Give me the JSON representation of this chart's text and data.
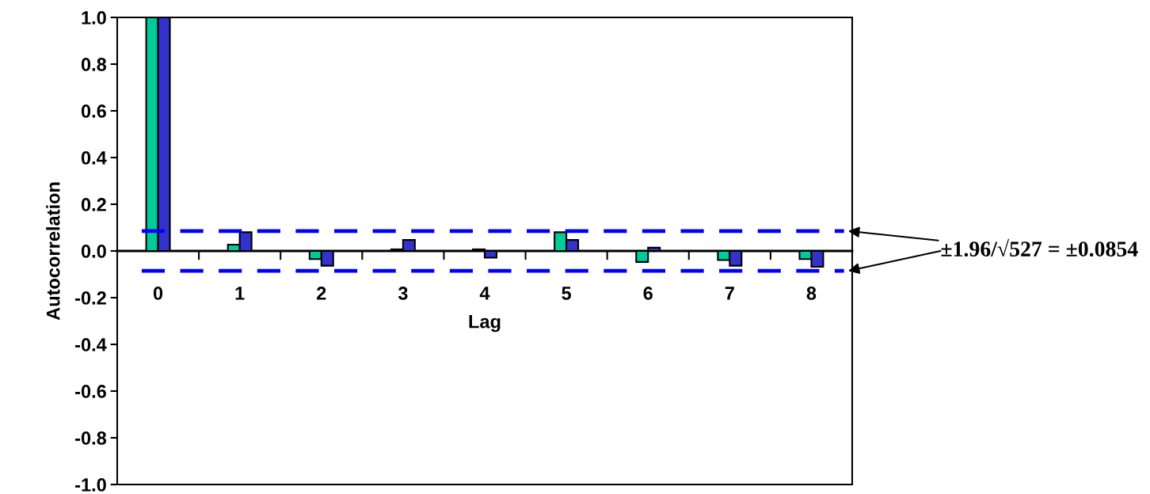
{
  "chart_data": {
    "type": "bar",
    "xlabel": "Lag",
    "ylabel": "Autocorrelation",
    "categories": [
      "0",
      "1",
      "2",
      "3",
      "4",
      "5",
      "6",
      "7",
      "8"
    ],
    "series": [
      {
        "color": "#00cc99",
        "values": [
          1.0,
          0.027,
          -0.035,
          0.007,
          0.007,
          0.08,
          -0.047,
          -0.039,
          -0.035
        ]
      },
      {
        "color": "#3333cc",
        "values": [
          1.0,
          0.08,
          -0.063,
          0.047,
          -0.029,
          0.047,
          0.014,
          -0.063,
          -0.068
        ]
      }
    ],
    "ylim": [
      -1.0,
      1.0
    ],
    "yticks": [
      {
        "value": -1.0,
        "label": "-1.0"
      },
      {
        "value": -0.8,
        "label": "-0.8"
      },
      {
        "value": -0.6,
        "label": "-0.6"
      },
      {
        "value": -0.4,
        "label": "-0.4"
      },
      {
        "value": -0.2,
        "label": "-0.2"
      },
      {
        "value": 0,
        "label": "0.0"
      },
      {
        "value": 0.2,
        "label": "0.2"
      },
      {
        "value": 0.4,
        "label": "0.4"
      },
      {
        "value": 0.6,
        "label": "0.6"
      },
      {
        "value": 0.8,
        "label": "0.8"
      },
      {
        "value": 1.0,
        "label": "1.0"
      }
    ],
    "ref_lines": [
      {
        "axis": "y",
        "value": 0.0854,
        "color": "#0000ff",
        "line_style": "dashed"
      },
      {
        "axis": "y",
        "value": -0.0854,
        "color": "#0000ff",
        "line_style": "dashed"
      }
    ],
    "annotations": [
      "±1.96/√527 = ±0.0854"
    ],
    "grid": false,
    "legend": false
  }
}
